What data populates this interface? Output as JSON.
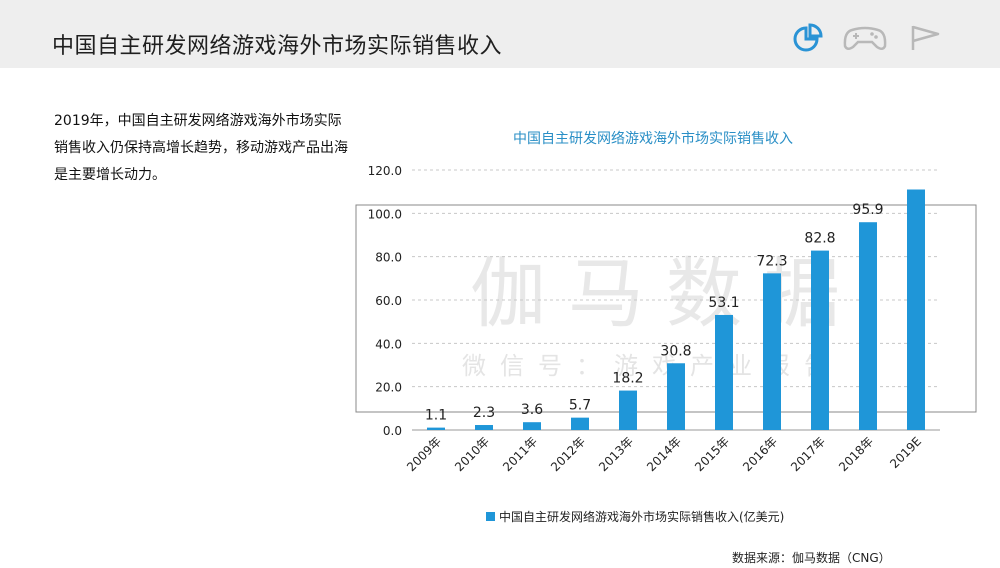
{
  "header": {
    "title": "中国自主研发网络游戏海外市场实际销售收入",
    "icons": [
      "pie-chart-icon",
      "gamepad-icon",
      "flag-icon"
    ],
    "accent_color": "#2a93d5"
  },
  "description": "2019年，中国自主研发网络游戏海外市场实际销售收入仍保持高增长趋势，移动游戏产品出海是主要增长动力。",
  "watermark": {
    "main": "伽马数据",
    "sub": "微信号：游戏产业报告"
  },
  "source": "数据来源：伽马数据（CNG）",
  "chart_data": {
    "type": "bar",
    "title": "中国自主研发网络游戏海外市场实际销售收入",
    "categories": [
      "2009年",
      "2010年",
      "2011年",
      "2012年",
      "2013年",
      "2014年",
      "2015年",
      "2016年",
      "2017年",
      "2018年",
      "2019E"
    ],
    "series": [
      {
        "name": "中国自主研发网络游戏海外市场实际销售收入(亿美元)",
        "values": [
          1.1,
          2.3,
          3.6,
          5.7,
          18.2,
          30.8,
          53.1,
          72.3,
          82.8,
          95.9,
          111.0
        ],
        "labels": [
          "1.1",
          "2.3",
          "3.6",
          "5.7",
          "18.2",
          "30.8",
          "53.1",
          "72.3",
          "82.8",
          "95.9",
          ""
        ],
        "color": "#1f96d8"
      }
    ],
    "yticks": [
      "0.0",
      "20.0",
      "40.0",
      "60.0",
      "80.0",
      "100.0",
      "120.0"
    ],
    "ylim": [
      0,
      120
    ],
    "grid": true,
    "legend": "bottom"
  }
}
